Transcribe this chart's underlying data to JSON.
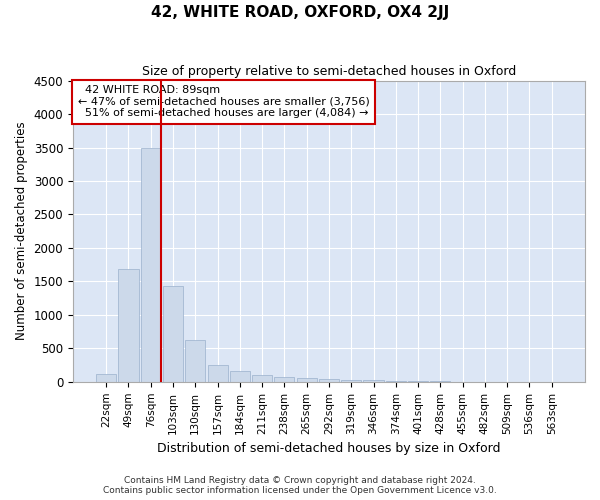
{
  "title": "42, WHITE ROAD, OXFORD, OX4 2JJ",
  "subtitle": "Size of property relative to semi-detached houses in Oxford",
  "xlabel": "Distribution of semi-detached houses by size in Oxford",
  "ylabel": "Number of semi-detached properties",
  "bar_color": "#ccd9ea",
  "bar_edge_color": "#9ab0cc",
  "background_color": "#dce6f5",
  "grid_color": "#ffffff",
  "annotation_box_color": "#ffffff",
  "annotation_border_color": "#cc0000",
  "vline_color": "#cc0000",
  "fig_background": "#ffffff",
  "categories": [
    "22sqm",
    "49sqm",
    "76sqm",
    "103sqm",
    "130sqm",
    "157sqm",
    "184sqm",
    "211sqm",
    "238sqm",
    "265sqm",
    "292sqm",
    "319sqm",
    "346sqm",
    "374sqm",
    "401sqm",
    "428sqm",
    "455sqm",
    "482sqm",
    "509sqm",
    "536sqm",
    "563sqm"
  ],
  "values": [
    120,
    1680,
    3500,
    1430,
    620,
    250,
    160,
    95,
    70,
    55,
    45,
    30,
    20,
    12,
    8,
    5,
    4,
    3,
    3,
    2,
    2
  ],
  "ylim": [
    0,
    4500
  ],
  "yticks": [
    0,
    500,
    1000,
    1500,
    2000,
    2500,
    3000,
    3500,
    4000,
    4500
  ],
  "property_label": "42 WHITE ROAD: 89sqm",
  "pct_smaller": 47,
  "n_smaller": 3756,
  "pct_larger": 51,
  "n_larger": 4084,
  "vline_bin_index": 2,
  "footer_line1": "Contains HM Land Registry data © Crown copyright and database right 2024.",
  "footer_line2": "Contains public sector information licensed under the Open Government Licence v3.0."
}
